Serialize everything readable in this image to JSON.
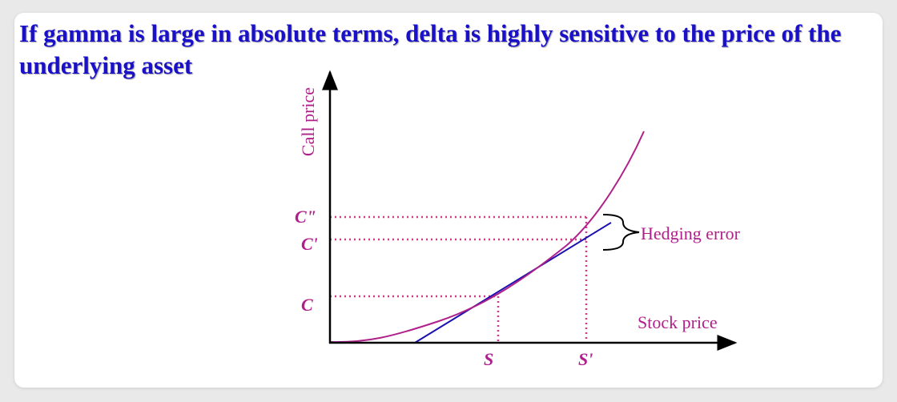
{
  "title": "If gamma is large in absolute terms, delta is highly sensitive to the price of the underlying asset",
  "diagram": {
    "y_axis_label": "Call price",
    "x_axis_label": "Stock price",
    "y_ticks": {
      "c": "C",
      "c_prime": "C'",
      "c_double_prime": "C\""
    },
    "x_ticks": {
      "s": "S",
      "s_prime": "S'"
    },
    "annotation": "Hedging error"
  },
  "colors": {
    "title": "#1a10c8",
    "curve": "#b0208a",
    "tangent": "#1a10b0",
    "guides": "#d03a8a",
    "labels": "#b0208a",
    "axes": "#000000"
  }
}
